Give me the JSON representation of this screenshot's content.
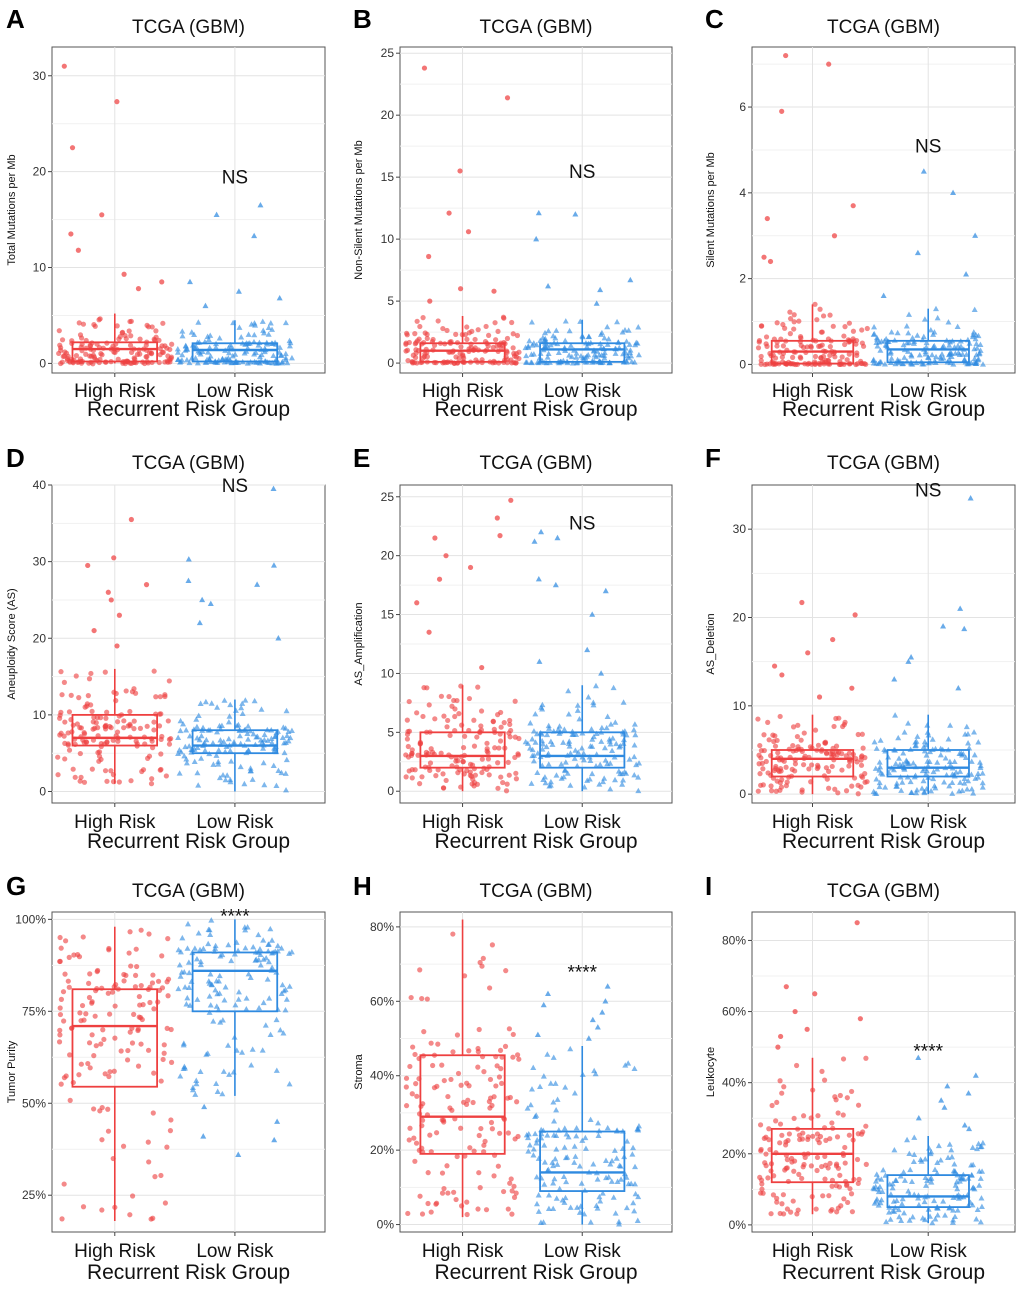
{
  "colors": {
    "high": "#ee4040",
    "low": "#2f8ae0"
  },
  "chart_data": [
    {
      "type": "box",
      "letter": "A",
      "title": "TCGA (GBM)",
      "ylabel": "Total Mutations per Mb",
      "xlabel": "Recurrent Risk Group",
      "categories": [
        "High Risk",
        "Low Risk"
      ],
      "ylim": [
        -1,
        33
      ],
      "yticks": [
        0,
        10,
        20,
        30
      ],
      "ytick_labels": [
        "0",
        "10",
        "20",
        "30"
      ],
      "significance": "NS",
      "sig_y": 19.5,
      "boxes": [
        {
          "group": "High Risk",
          "min": 0,
          "q1": 0.2,
          "median": 1.5,
          "q3": 2.2,
          "max": 5.2
        },
        {
          "group": "Low Risk",
          "min": 0,
          "q1": 0.2,
          "median": 1.4,
          "q3": 2.1,
          "max": 4.5
        }
      ],
      "outliers": [
        {
          "group": "High Risk",
          "values": [
            31,
            27.3,
            22.5,
            15.5,
            13.5,
            11.8,
            9.3,
            8.5,
            7.8
          ]
        },
        {
          "group": "Low Risk",
          "values": [
            16.5,
            15.5,
            13.3,
            8.5,
            7.5,
            6.8,
            6.0
          ]
        }
      ]
    },
    {
      "type": "box",
      "letter": "B",
      "title": "TCGA (GBM)",
      "ylabel": "Non-Silent Mutations per Mb",
      "xlabel": "Recurrent Risk Group",
      "categories": [
        "High Risk",
        "Low Risk"
      ],
      "ylim": [
        -0.8,
        25.5
      ],
      "yticks": [
        0,
        5,
        10,
        15,
        20,
        25
      ],
      "ytick_labels": [
        "0",
        "5",
        "10",
        "15",
        "20",
        "25"
      ],
      "significance": "NS",
      "sig_y": 15.5,
      "boxes": [
        {
          "group": "High Risk",
          "min": 0,
          "q1": 0.1,
          "median": 1.0,
          "q3": 1.6,
          "max": 3.8
        },
        {
          "group": "Low Risk",
          "min": 0,
          "q1": 0.1,
          "median": 1.1,
          "q3": 1.6,
          "max": 3.5
        }
      ],
      "outliers": [
        {
          "group": "High Risk",
          "values": [
            23.8,
            21.4,
            15.5,
            12.1,
            10.6,
            8.6,
            6.0,
            5.8,
            5.0
          ]
        },
        {
          "group": "Low Risk",
          "values": [
            12.1,
            12.0,
            10.0,
            6.7,
            6.2,
            5.9,
            4.8
          ]
        }
      ]
    },
    {
      "type": "box",
      "letter": "C",
      "title": "TCGA (GBM)",
      "ylabel": "Silent Mutations per Mb",
      "xlabel": "Recurrent Risk Group",
      "categories": [
        "High Risk",
        "Low Risk"
      ],
      "ylim": [
        -0.2,
        7.4
      ],
      "yticks": [
        0,
        2,
        4,
        6
      ],
      "ytick_labels": [
        "0",
        "2",
        "4",
        "6"
      ],
      "significance": "NS",
      "sig_y": 5.1,
      "boxes": [
        {
          "group": "High Risk",
          "min": 0,
          "q1": 0.02,
          "median": 0.3,
          "q3": 0.55,
          "max": 1.4
        },
        {
          "group": "Low Risk",
          "min": 0,
          "q1": 0.05,
          "median": 0.35,
          "q3": 0.55,
          "max": 1.3
        }
      ],
      "outliers": [
        {
          "group": "High Risk",
          "values": [
            7.2,
            7.0,
            5.9,
            3.7,
            3.4,
            3.0,
            2.5,
            2.4
          ]
        },
        {
          "group": "Low Risk",
          "values": [
            4.5,
            4.0,
            3.0,
            2.6,
            2.1,
            1.6
          ]
        }
      ]
    },
    {
      "type": "box",
      "letter": "D",
      "title": "TCGA (GBM)",
      "ylabel": "Aneuploidy Score (AS)",
      "xlabel": "Recurrent Risk Group",
      "categories": [
        "High Risk",
        "Low Risk"
      ],
      "ylim": [
        -1.5,
        40
      ],
      "yticks": [
        0,
        10,
        20,
        30,
        40
      ],
      "ytick_labels": [
        "0",
        "10",
        "20",
        "30",
        "40"
      ],
      "significance": "NS",
      "sig_y": 40,
      "boxes": [
        {
          "group": "High Risk",
          "min": 1,
          "q1": 6,
          "median": 7,
          "q3": 10,
          "max": 16
        },
        {
          "group": "Low Risk",
          "min": 0,
          "q1": 5,
          "median": 6,
          "q3": 8,
          "max": 12
        }
      ],
      "outliers": [
        {
          "group": "High Risk",
          "values": [
            35.5,
            30.5,
            29.5,
            27,
            26,
            25,
            23,
            21,
            19
          ]
        },
        {
          "group": "Low Risk",
          "values": [
            39.5,
            30.3,
            29.5,
            27.5,
            27,
            25,
            24.5,
            22,
            20
          ]
        }
      ]
    },
    {
      "type": "box",
      "letter": "E",
      "title": "TCGA (GBM)",
      "ylabel": "AS_Amplification",
      "xlabel": "Recurrent Risk Group",
      "categories": [
        "High Risk",
        "Low Risk"
      ],
      "ylim": [
        -1,
        26
      ],
      "yticks": [
        0,
        5,
        10,
        15,
        20,
        25
      ],
      "ytick_labels": [
        "0",
        "5",
        "10",
        "15",
        "20",
        "25"
      ],
      "significance": "NS",
      "sig_y": 22.8,
      "boxes": [
        {
          "group": "High Risk",
          "min": 0,
          "q1": 2,
          "median": 3,
          "q3": 5,
          "max": 9
        },
        {
          "group": "Low Risk",
          "min": 0,
          "q1": 2,
          "median": 3,
          "q3": 5,
          "max": 9
        }
      ],
      "outliers": [
        {
          "group": "High Risk",
          "values": [
            24.7,
            23.2,
            21.7,
            21.5,
            20,
            19,
            18,
            16,
            13.5,
            10.5
          ]
        },
        {
          "group": "Low Risk",
          "values": [
            22,
            21.5,
            21.2,
            18,
            17.5,
            17,
            15,
            12,
            11,
            10
          ]
        }
      ]
    },
    {
      "type": "box",
      "letter": "F",
      "title": "TCGA (GBM)",
      "ylabel": "AS_Deletion",
      "xlabel": "Recurrent Risk Group",
      "categories": [
        "High Risk",
        "Low Risk"
      ],
      "ylim": [
        -1,
        35
      ],
      "yticks": [
        0,
        10,
        20,
        30
      ],
      "ytick_labels": [
        "0",
        "10",
        "20",
        "30"
      ],
      "significance": "NS",
      "sig_y": 34.5,
      "boxes": [
        {
          "group": "High Risk",
          "min": 0,
          "q1": 2,
          "median": 4,
          "q3": 5,
          "max": 9
        },
        {
          "group": "Low Risk",
          "min": 0,
          "q1": 2,
          "median": 3,
          "q3": 5,
          "max": 9
        }
      ],
      "outliers": [
        {
          "group": "High Risk",
          "values": [
            21.7,
            20.3,
            17.5,
            16,
            14.5,
            13.5,
            12,
            11
          ]
        },
        {
          "group": "Low Risk",
          "values": [
            33.5,
            21,
            19,
            18.7,
            15.5,
            15,
            13,
            12
          ]
        }
      ]
    },
    {
      "type": "box",
      "letter": "G",
      "title": "TCGA (GBM)",
      "ylabel": "Tumor Purity",
      "xlabel": "Recurrent Risk Group",
      "categories": [
        "High Risk",
        "Low Risk"
      ],
      "ylim": [
        0.15,
        1.02
      ],
      "yticks": [
        0.25,
        0.5,
        0.75,
        1.0
      ],
      "ytick_labels": [
        "25%",
        "50%",
        "75%",
        "100%"
      ],
      "significance": "****",
      "sig_y": 1.01,
      "boxes": [
        {
          "group": "High Risk",
          "min": 0.18,
          "q1": 0.545,
          "median": 0.71,
          "q3": 0.81,
          "max": 0.98
        },
        {
          "group": "Low Risk",
          "min": 0.52,
          "q1": 0.75,
          "median": 0.86,
          "q3": 0.91,
          "max": 1.0
        }
      ],
      "outliers": [
        {
          "group": "Low Risk",
          "values": [
            0.49,
            0.45,
            0.41,
            0.4,
            0.36
          ]
        }
      ]
    },
    {
      "type": "box",
      "letter": "H",
      "title": "TCGA (GBM)",
      "ylabel": "Stroma",
      "xlabel": "Recurrent Risk Group",
      "categories": [
        "High Risk",
        "Low Risk"
      ],
      "ylim": [
        -0.02,
        0.84
      ],
      "yticks": [
        0,
        0.2,
        0.4,
        0.6,
        0.8
      ],
      "ytick_labels": [
        "0%",
        "20%",
        "40%",
        "60%",
        "80%"
      ],
      "significance": "****",
      "sig_y": 0.68,
      "boxes": [
        {
          "group": "High Risk",
          "min": 0.02,
          "q1": 0.19,
          "median": 0.29,
          "q3": 0.455,
          "max": 0.82
        },
        {
          "group": "Low Risk",
          "min": 0,
          "q1": 0.09,
          "median": 0.14,
          "q3": 0.25,
          "max": 0.48
        }
      ],
      "outliers": [
        {
          "group": "Low Risk",
          "values": [
            0.64,
            0.62,
            0.6,
            0.59,
            0.57,
            0.55,
            0.53,
            0.51,
            0.5
          ]
        }
      ]
    },
    {
      "type": "box",
      "letter": "I",
      "title": "TCGA (GBM)",
      "ylabel": "Leukocyte",
      "xlabel": "Recurrent Risk Group",
      "categories": [
        "High Risk",
        "Low Risk"
      ],
      "ylim": [
        -0.02,
        0.88
      ],
      "yticks": [
        0,
        0.2,
        0.4,
        0.6,
        0.8
      ],
      "ytick_labels": [
        "0%",
        "20%",
        "40%",
        "60%",
        "80%"
      ],
      "significance": "****",
      "sig_y": 0.49,
      "boxes": [
        {
          "group": "High Risk",
          "min": 0.03,
          "q1": 0.12,
          "median": 0.2,
          "q3": 0.27,
          "max": 0.47
        },
        {
          "group": "Low Risk",
          "min": 0.005,
          "q1": 0.05,
          "median": 0.08,
          "q3": 0.14,
          "max": 0.25
        }
      ],
      "outliers": [
        {
          "group": "High Risk",
          "values": [
            0.85,
            0.67,
            0.65,
            0.6,
            0.58,
            0.55,
            0.53,
            0.5
          ]
        },
        {
          "group": "Low Risk",
          "values": [
            0.47,
            0.42,
            0.39,
            0.37,
            0.35,
            0.33,
            0.3,
            0.28,
            0.27
          ]
        }
      ]
    }
  ]
}
